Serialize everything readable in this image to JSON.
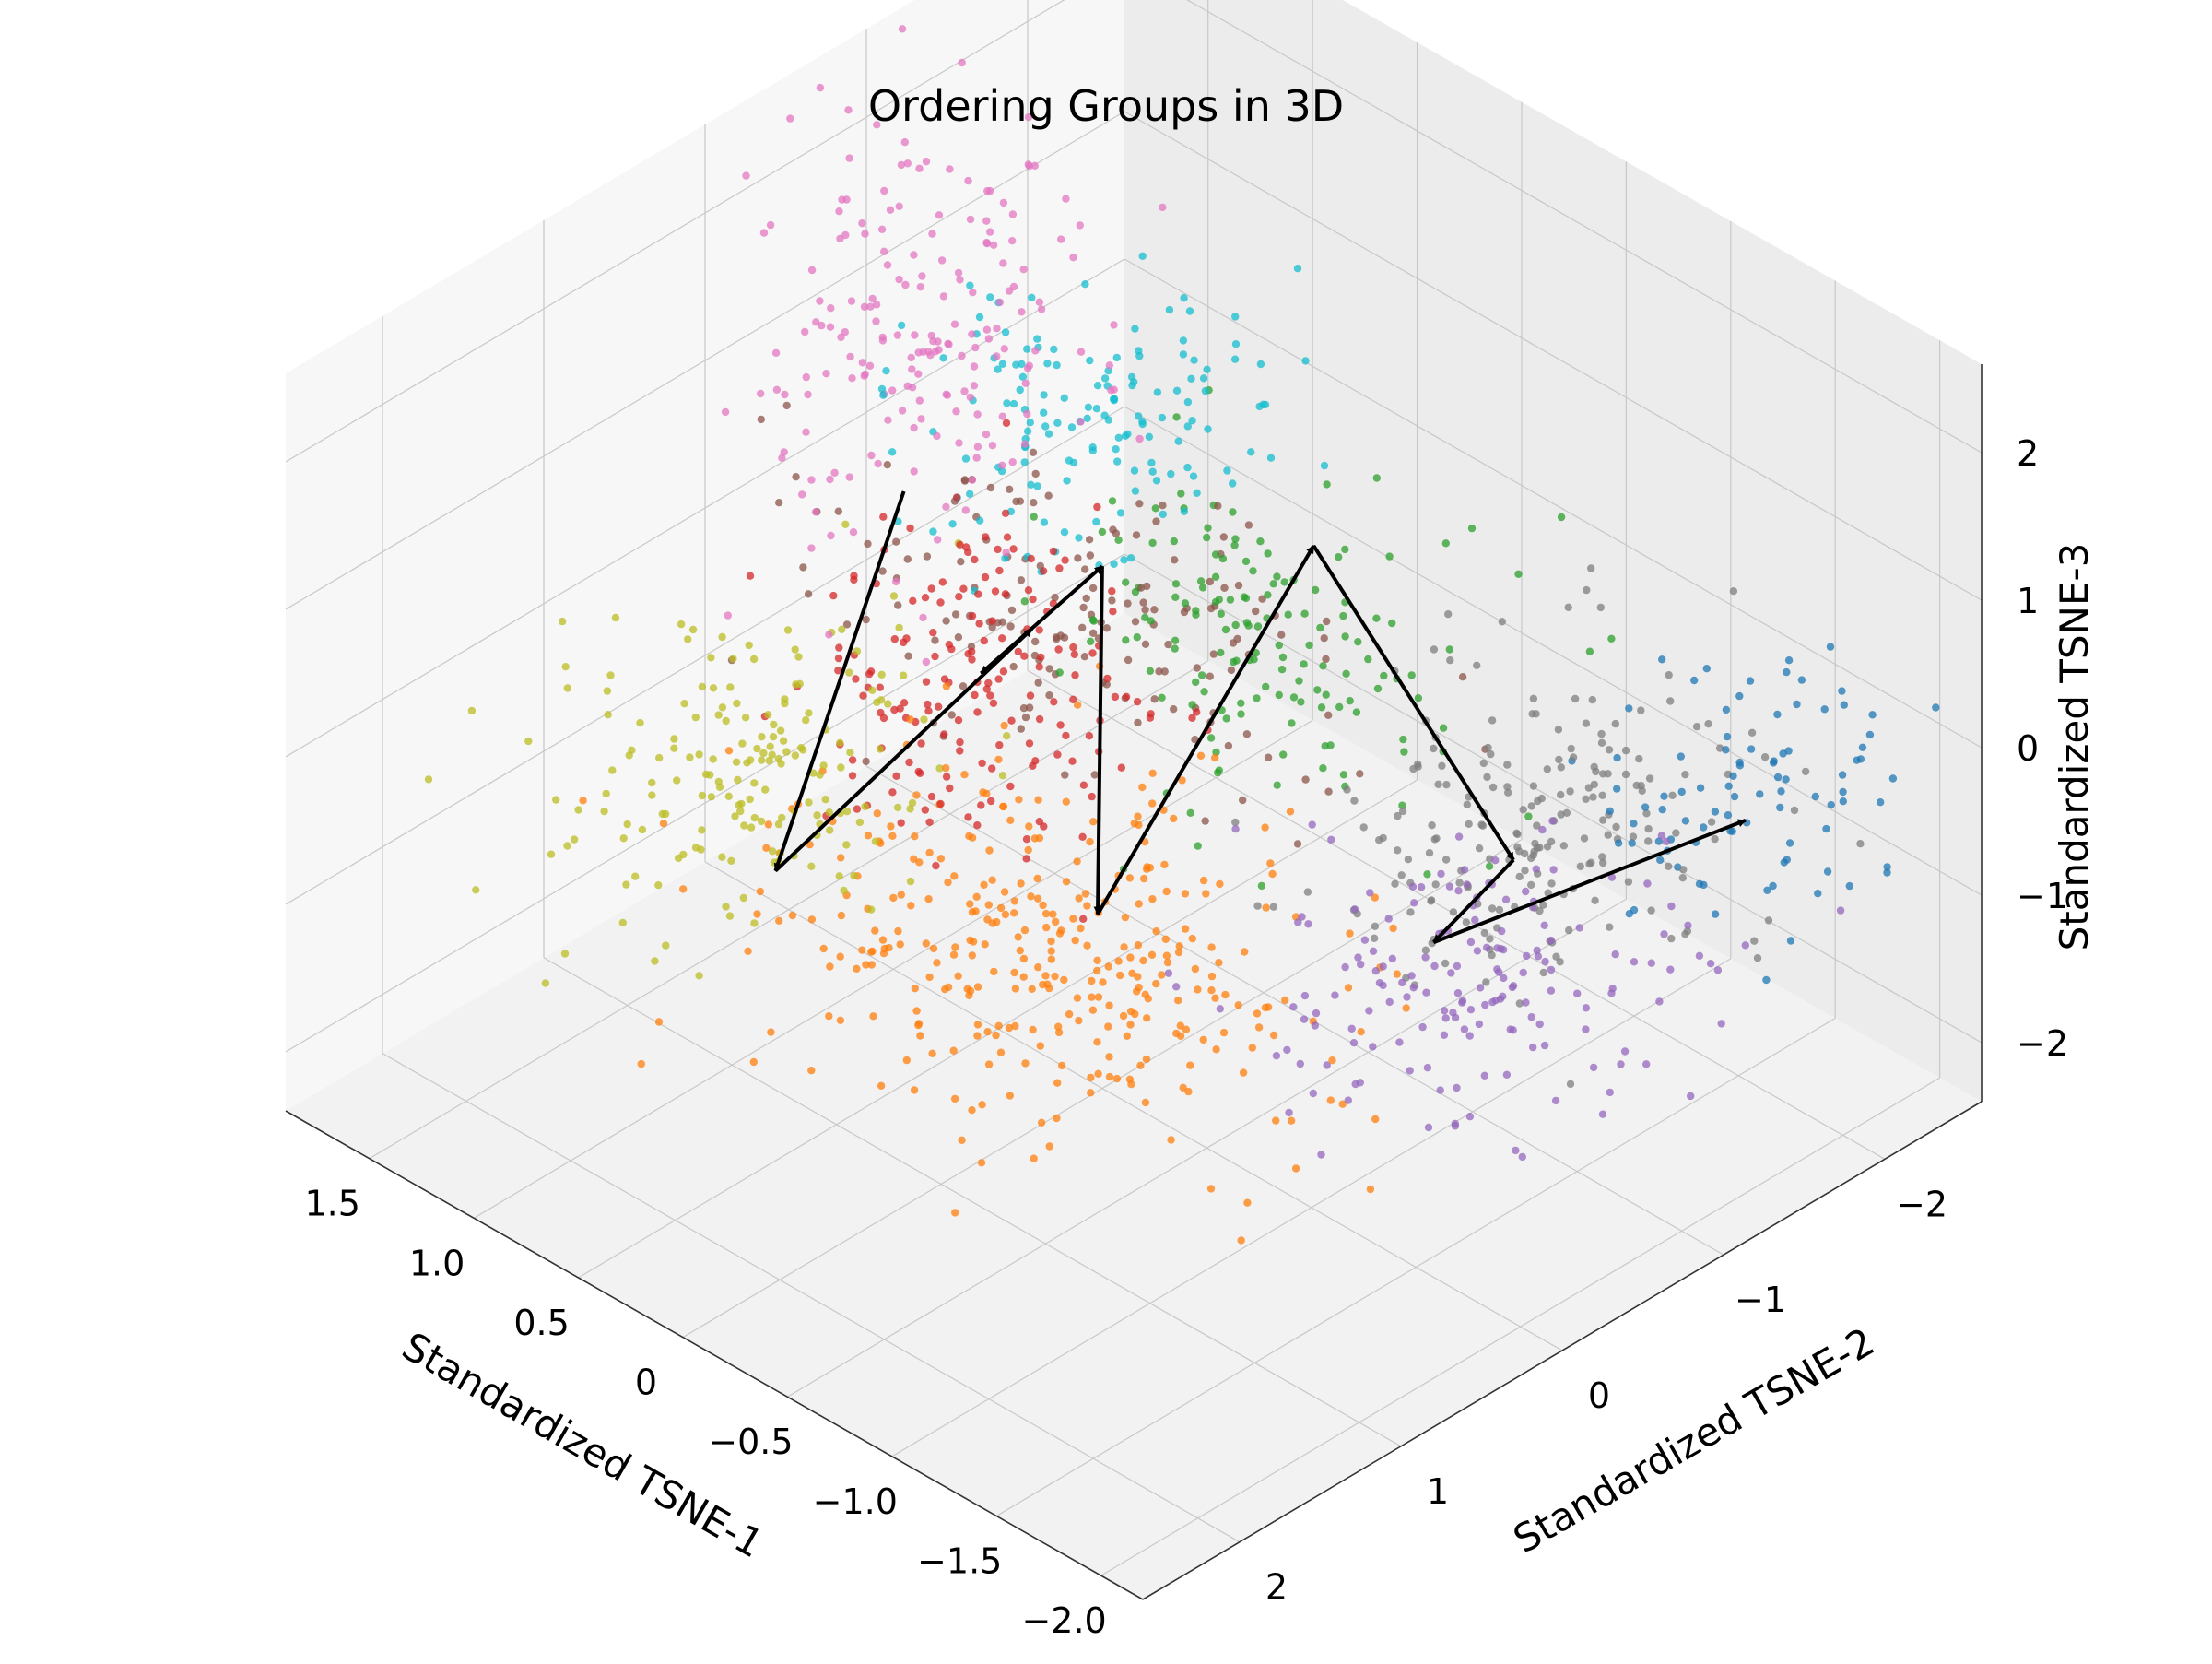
{
  "chart_data": {
    "type": "scatter",
    "dimensions": 3,
    "title": "Ordering Groups in 3D",
    "xlabel": "Standardized TSNE-1",
    "ylabel": "Standardized TSNE-2",
    "zlabel": "Standardized TSNE-3",
    "xlim": [
      -2.2,
      1.9
    ],
    "ylim": [
      -2.6,
      2.6
    ],
    "zlim": [
      -2.4,
      2.6
    ],
    "x_ticks": [
      1.5,
      1.0,
      0.5,
      0,
      -0.5,
      -1.0,
      -1.5,
      -2.0
    ],
    "x_tick_labels": [
      "1.5",
      "1.0",
      "0.5",
      "0",
      "−0.5",
      "−1.0",
      "−1.5",
      "−2.0"
    ],
    "y_ticks": [
      -2,
      -1,
      0,
      1,
      2
    ],
    "y_tick_labels": [
      "−2",
      "−1",
      "0",
      "1",
      "2"
    ],
    "z_ticks": [
      -2,
      -1,
      0,
      1,
      2
    ],
    "z_tick_labels": [
      "−2",
      "−1",
      "0",
      "1",
      "2"
    ],
    "grid": true,
    "legend": "none",
    "view": {
      "elevation_deg": 30,
      "azimuth_deg": 45
    },
    "groups": [
      {
        "color": "#1f77b4",
        "center": [
          -1.7,
          -1.8,
          -0.2
        ],
        "spread": [
          0.25,
          0.5,
          0.35
        ],
        "n": 90
      },
      {
        "color": "#ff7f0e",
        "center": [
          -0.2,
          0.6,
          -0.9
        ],
        "spread": [
          0.55,
          0.55,
          0.35
        ],
        "n": 340
      },
      {
        "color": "#2ca02c",
        "center": [
          -1.25,
          0.55,
          2.0
        ],
        "spread": [
          0.45,
          0.45,
          0.45
        ],
        "n": 150
      },
      {
        "color": "#d62728",
        "center": [
          0.5,
          0.15,
          0.1
        ],
        "spread": [
          0.35,
          0.35,
          0.45
        ],
        "n": 170
      },
      {
        "color": "#9467bd",
        "center": [
          -1.1,
          -0.8,
          -1.3
        ],
        "spread": [
          0.35,
          0.6,
          0.25
        ],
        "n": 170
      },
      {
        "color": "#8c564b",
        "center": [
          -1.0,
          1.4,
          2.45
        ],
        "spread": [
          0.55,
          0.45,
          0.2
        ],
        "n": 160
      },
      {
        "color": "#e377c2",
        "center": [
          1.3,
          -0.55,
          1.3
        ],
        "spread": [
          0.3,
          0.4,
          0.65
        ],
        "n": 190
      },
      {
        "color": "#7f7f7f",
        "center": [
          -1.4,
          -0.8,
          -0.05
        ],
        "spread": [
          0.35,
          0.5,
          0.4
        ],
        "n": 210
      },
      {
        "color": "#bcbd22",
        "center": [
          1.2,
          0.65,
          -0.8
        ],
        "spread": [
          0.3,
          0.5,
          0.45
        ],
        "n": 180
      },
      {
        "color": "#17becf",
        "center": [
          0.4,
          -0.5,
          1.5
        ],
        "spread": [
          0.35,
          0.45,
          0.35
        ],
        "n": 150
      }
    ],
    "order_path": [
      {
        "color": "#e377c2",
        "point": [
          1.15,
          -0.26,
          0.55
        ]
      },
      {
        "color": "#bcbd22",
        "point": [
          1.0,
          0.73,
          -1.26
        ]
      },
      {
        "color": "#8c564b",
        "point": [
          -0.65,
          1.28,
          2.07
        ]
      },
      {
        "color": "#d62728",
        "point": [
          0.51,
          0.09,
          0.06
        ]
      },
      {
        "color": "#17becf",
        "point": [
          0.17,
          -0.22,
          0.86
        ]
      },
      {
        "color": "#ff7f0e",
        "point": [
          -0.31,
          0.43,
          -0.69
        ]
      },
      {
        "color": "#2ca02c",
        "point": [
          -0.88,
          -0.17,
          1.88
        ]
      },
      {
        "color": "#7f7f7f",
        "point": [
          -1.55,
          -0.54,
          0.05
        ]
      },
      {
        "color": "#9467bd",
        "point": [
          -1.13,
          -0.59,
          -0.88
        ]
      },
      {
        "color": "#1f77b4",
        "point": [
          -1.85,
          -1.59,
          -0.12
        ]
      }
    ]
  }
}
